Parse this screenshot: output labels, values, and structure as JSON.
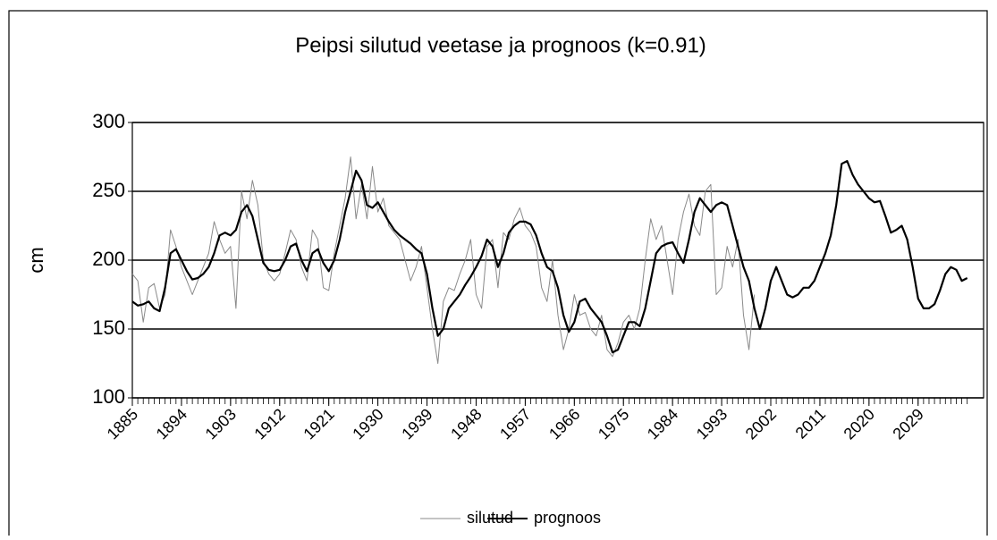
{
  "chart_data": {
    "type": "line",
    "title": "Peipsi   silutud   veetase ja prognoos (k=0.91)",
    "ylabel": "cm",
    "x": [
      1885,
      1886,
      1887,
      1888,
      1889,
      1890,
      1891,
      1892,
      1893,
      1894,
      1895,
      1896,
      1897,
      1898,
      1899,
      1900,
      1901,
      1902,
      1903,
      1904,
      1905,
      1906,
      1907,
      1908,
      1909,
      1910,
      1911,
      1912,
      1913,
      1914,
      1915,
      1916,
      1917,
      1918,
      1919,
      1920,
      1921,
      1922,
      1923,
      1924,
      1925,
      1926,
      1927,
      1928,
      1929,
      1930,
      1931,
      1932,
      1933,
      1934,
      1935,
      1936,
      1937,
      1938,
      1939,
      1940,
      1941,
      1942,
      1943,
      1944,
      1945,
      1946,
      1947,
      1948,
      1949,
      1950,
      1951,
      1952,
      1953,
      1954,
      1955,
      1956,
      1957,
      1958,
      1959,
      1960,
      1961,
      1962,
      1963,
      1964,
      1965,
      1966,
      1967,
      1968,
      1969,
      1970,
      1971,
      1972,
      1973,
      1974,
      1975,
      1976,
      1977,
      1978,
      1979,
      1980,
      1981,
      1982,
      1983,
      1984,
      1985,
      1986,
      1987,
      1988,
      1989,
      1990,
      1991,
      1992,
      1993,
      1994,
      1995,
      1996,
      1997,
      1998,
      1999,
      2000,
      2001,
      2002,
      2003,
      2004,
      2005,
      2006,
      2007,
      2008,
      2009,
      2010,
      2011,
      2012,
      2013,
      2014,
      2015,
      2016,
      2017,
      2018,
      2019,
      2020,
      2021,
      2022,
      2023,
      2024,
      2025,
      2026,
      2027,
      2028,
      2029,
      2030,
      2031,
      2032,
      2033,
      2034,
      2035,
      2036,
      2037,
      2038
    ],
    "series": [
      {
        "name": "silutud",
        "color": "#8a8a8a",
        "values": [
          190,
          185,
          155,
          180,
          183,
          165,
          175,
          222,
          210,
          195,
          185,
          175,
          185,
          195,
          205,
          228,
          215,
          205,
          210,
          165,
          250,
          230,
          258,
          240,
          200,
          190,
          185,
          190,
          205,
          222,
          215,
          195,
          185,
          222,
          215,
          180,
          178,
          205,
          225,
          245,
          275,
          230,
          255,
          230,
          268,
          235,
          245,
          225,
          220,
          215,
          200,
          185,
          195,
          210,
          180,
          150,
          125,
          170,
          180,
          178,
          190,
          200,
          215,
          175,
          165,
          210,
          215,
          180,
          220,
          215,
          230,
          238,
          225,
          220,
          210,
          180,
          170,
          200,
          160,
          135,
          150,
          175,
          160,
          162,
          150,
          145,
          160,
          135,
          130,
          140,
          155,
          160,
          150,
          165,
          200,
          230,
          215,
          225,
          200,
          175,
          215,
          235,
          248,
          225,
          218,
          250,
          255,
          175,
          180,
          210,
          195,
          215,
          160,
          135,
          175,
          null,
          null,
          null,
          null,
          null,
          null,
          null,
          null,
          null,
          null,
          null,
          null,
          null,
          null,
          null,
          null,
          null,
          null,
          null,
          null,
          null,
          null,
          null,
          null,
          null,
          null,
          null,
          null,
          null,
          null,
          null,
          null,
          null,
          null,
          null,
          null,
          null,
          null,
          null
        ]
      },
      {
        "name": "prognoos",
        "color": "#000000",
        "values": [
          170,
          167,
          168,
          170,
          165,
          163,
          180,
          205,
          208,
          200,
          192,
          186,
          187,
          190,
          195,
          205,
          218,
          220,
          218,
          222,
          235,
          240,
          232,
          215,
          198,
          193,
          192,
          193,
          200,
          210,
          212,
          200,
          192,
          205,
          208,
          198,
          192,
          200,
          215,
          235,
          250,
          265,
          258,
          240,
          238,
          242,
          235,
          228,
          222,
          218,
          215,
          212,
          208,
          205,
          190,
          165,
          145,
          150,
          165,
          170,
          175,
          182,
          188,
          195,
          203,
          215,
          210,
          195,
          205,
          220,
          225,
          228,
          228,
          226,
          218,
          205,
          195,
          192,
          180,
          160,
          148,
          155,
          170,
          172,
          165,
          160,
          155,
          145,
          133,
          135,
          145,
          155,
          155,
          152,
          165,
          185,
          205,
          210,
          212,
          213,
          205,
          198,
          215,
          235,
          245,
          240,
          235,
          240,
          242,
          240,
          225,
          210,
          195,
          185,
          165,
          150,
          165,
          185,
          195,
          185,
          175,
          173,
          175,
          180,
          180,
          185,
          195,
          205,
          218,
          240,
          270,
          272,
          262,
          255,
          250,
          245,
          242,
          243,
          232,
          220,
          222,
          225,
          215,
          195,
          172,
          165,
          165,
          168,
          178,
          190,
          195,
          193,
          185,
          187
        ]
      }
    ],
    "xlim": [
      1885,
      2041
    ],
    "xticks": [
      1885,
      1894,
      1903,
      1912,
      1921,
      1930,
      1939,
      1948,
      1957,
      1966,
      1975,
      1984,
      1993,
      2002,
      2011,
      2020,
      2029
    ],
    "ylim": [
      100,
      300
    ],
    "yticks": [
      100,
      150,
      200,
      250,
      300
    ],
    "grid": true,
    "legend": "bottom"
  }
}
